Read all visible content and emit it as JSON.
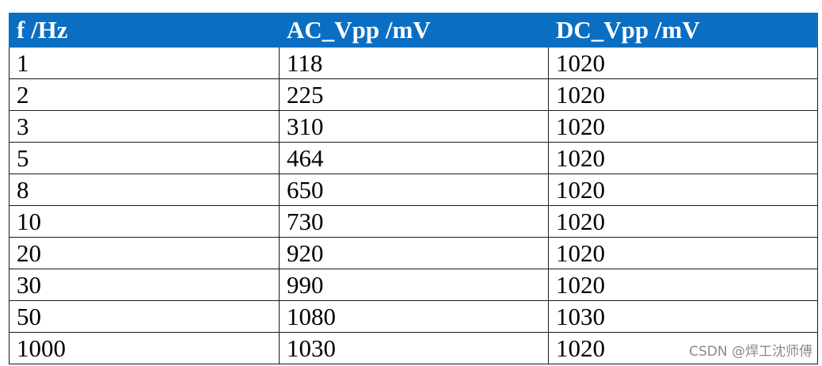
{
  "table": {
    "headers": [
      "f /Hz",
      "AC_Vpp /mV",
      "DC_Vpp /mV"
    ],
    "rows": [
      [
        "1",
        "118",
        "1020"
      ],
      [
        "2",
        "225",
        "1020"
      ],
      [
        "3",
        "310",
        "1020"
      ],
      [
        "5",
        "464",
        "1020"
      ],
      [
        "8",
        "650",
        "1020"
      ],
      [
        "10",
        "730",
        "1020"
      ],
      [
        "20",
        "920",
        "1020"
      ],
      [
        "30",
        "990",
        "1020"
      ],
      [
        "50",
        "1080",
        "1030"
      ],
      [
        "1000",
        "1030",
        "1020"
      ]
    ]
  },
  "colors": {
    "header_background": "#0a6fc2",
    "header_text": "#ffffff"
  },
  "watermark": "CSDN @焊工沈师傅"
}
